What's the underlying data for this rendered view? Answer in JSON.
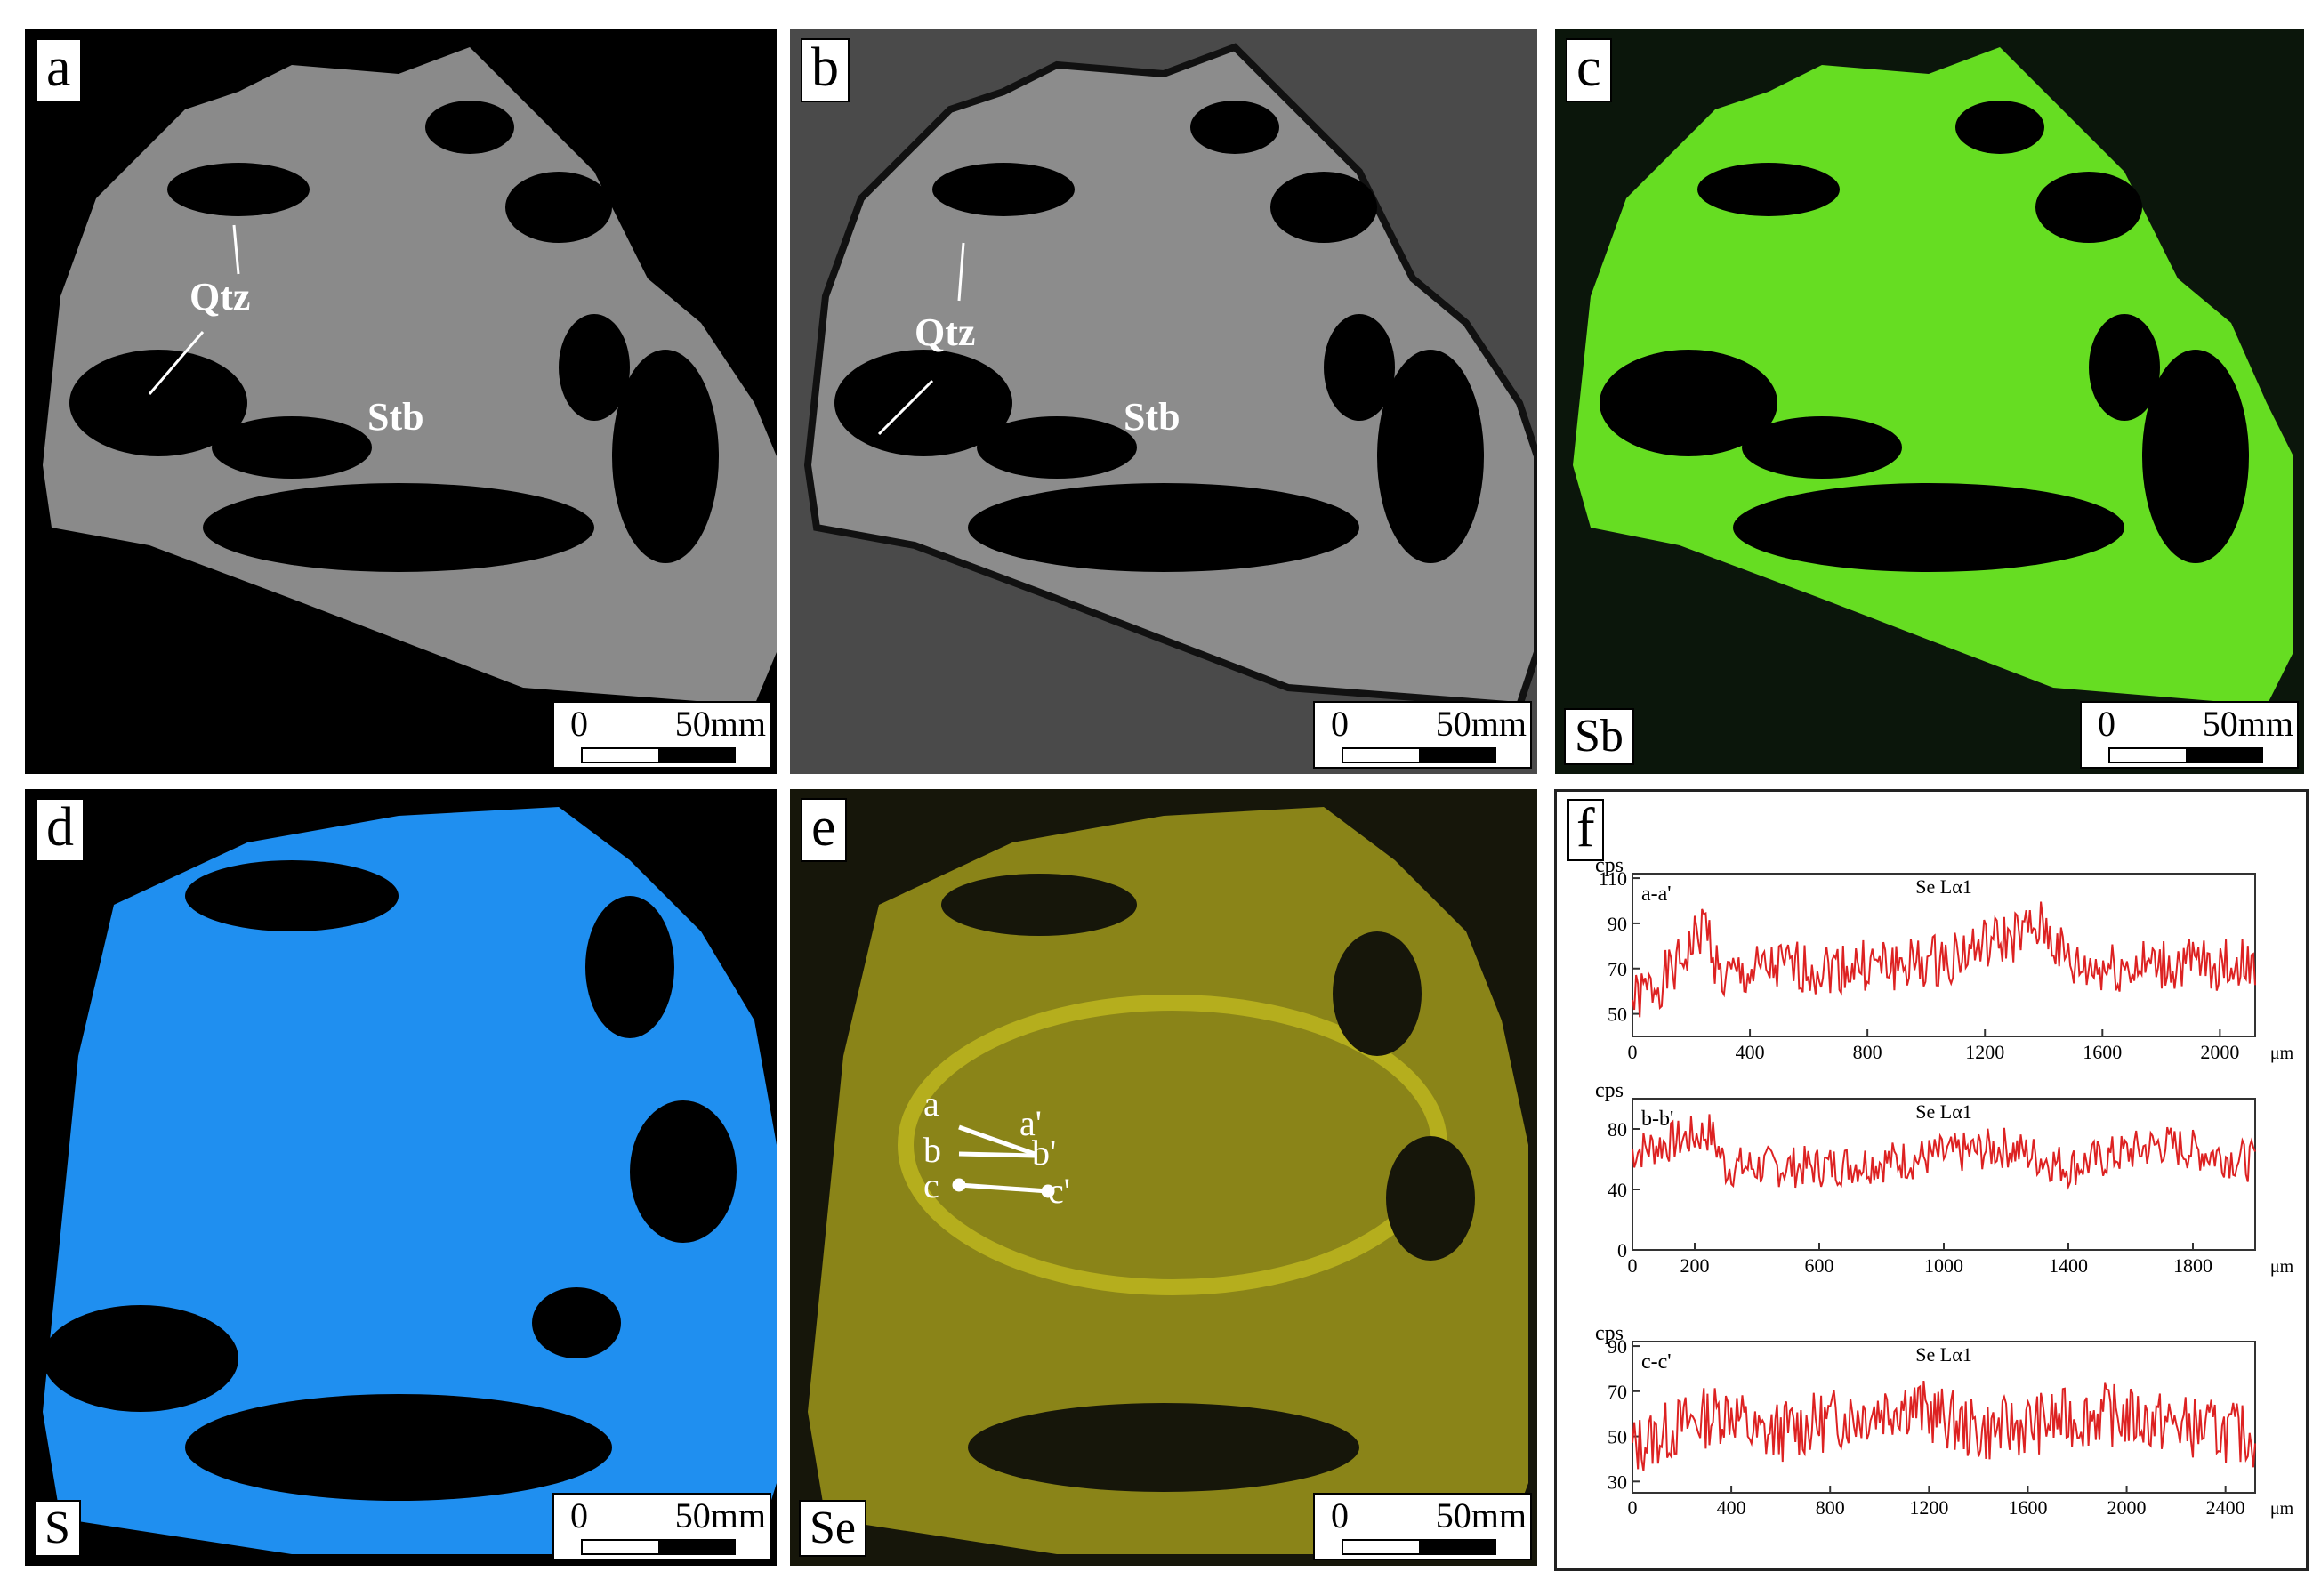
{
  "panels": {
    "a": {
      "label": "a",
      "qtz": "Qtz",
      "stb": "Stb",
      "scale_zero": "0",
      "scale_len": "50mm"
    },
    "b": {
      "label": "b",
      "qtz": "Qtz",
      "stb": "Stb",
      "scale_zero": "0",
      "scale_len": "50mm"
    },
    "c": {
      "label": "c",
      "element": "Sb",
      "scale_zero": "0",
      "scale_len": "50mm",
      "color": "#66dd22"
    },
    "d": {
      "label": "d",
      "element": "S",
      "scale_zero": "0",
      "scale_len": "50mm",
      "color": "#1f8ff0"
    },
    "e": {
      "label": "e",
      "element": "Se",
      "scale_zero": "0",
      "scale_len": "50mm",
      "color": "#c8c020",
      "lines": {
        "a": "a",
        "a2": "a'",
        "b": "b",
        "b2": "b'",
        "c": "c",
        "c2": "c'"
      }
    },
    "f": {
      "label": "f"
    }
  },
  "chart_data": [
    {
      "type": "line",
      "title": "Se Lα1",
      "series_label": "a-a'",
      "ylabel": "cps",
      "xunit": "μm",
      "ylim": [
        40,
        112
      ],
      "xlim": [
        0,
        2120
      ],
      "yticks": [
        "110",
        "90",
        "70",
        "50"
      ],
      "yticks_val": [
        110,
        90,
        70,
        50
      ],
      "xticks": [
        "0",
        "400",
        "800",
        "1200",
        "1600",
        "2000"
      ],
      "xticks_val": [
        0,
        400,
        800,
        1200,
        1600,
        2000
      ],
      "segments": [
        [
          0,
          55
        ],
        [
          150,
          70
        ],
        [
          250,
          90
        ],
        [
          300,
          65
        ],
        [
          500,
          70
        ],
        [
          1000,
          72
        ],
        [
          1200,
          80
        ],
        [
          1400,
          88
        ],
        [
          1500,
          70
        ],
        [
          2120,
          72
        ]
      ],
      "seed": 1,
      "noise": 12,
      "color": "#dd2222"
    },
    {
      "type": "line",
      "title": "Se Lα1",
      "series_label": "b-b'",
      "ylabel": "cps",
      "xunit": "μm",
      "ylim": [
        0,
        100
      ],
      "xlim": [
        0,
        2000
      ],
      "yticks": [
        "80",
        "40",
        "0"
      ],
      "yticks_val": [
        80,
        40,
        0
      ],
      "xticks": [
        "0",
        "200",
        "600",
        "1000",
        "1400",
        "1800"
      ],
      "xticks_val": [
        0,
        200,
        600,
        1000,
        1400,
        1800
      ],
      "segments": [
        [
          0,
          65
        ],
        [
          250,
          78
        ],
        [
          300,
          55
        ],
        [
          600,
          55
        ],
        [
          900,
          60
        ],
        [
          1200,
          68
        ],
        [
          1400,
          55
        ],
        [
          1700,
          70
        ],
        [
          2000,
          58
        ]
      ],
      "seed": 7,
      "noise": 14,
      "color": "#dd2222"
    },
    {
      "type": "line",
      "title": "Se Lα1",
      "series_label": "c-c'",
      "ylabel": "cps",
      "xunit": "μm",
      "ylim": [
        25,
        92
      ],
      "xlim": [
        0,
        2520
      ],
      "yticks": [
        "90",
        "70",
        "50",
        "30"
      ],
      "yticks_val": [
        90,
        70,
        50,
        30
      ],
      "xticks": [
        "0",
        "400",
        "800",
        "1200",
        "1600",
        "2000",
        "2400"
      ],
      "xticks_val": [
        0,
        400,
        800,
        1200,
        1600,
        2000,
        2400
      ],
      "segments": [
        [
          0,
          45
        ],
        [
          200,
          55
        ],
        [
          400,
          62
        ],
        [
          500,
          50
        ],
        [
          1000,
          62
        ],
        [
          1100,
          65
        ],
        [
          1400,
          52
        ],
        [
          1900,
          60
        ],
        [
          2520,
          50
        ]
      ],
      "seed": 13,
      "noise": 14,
      "color": "#dd2222"
    }
  ]
}
